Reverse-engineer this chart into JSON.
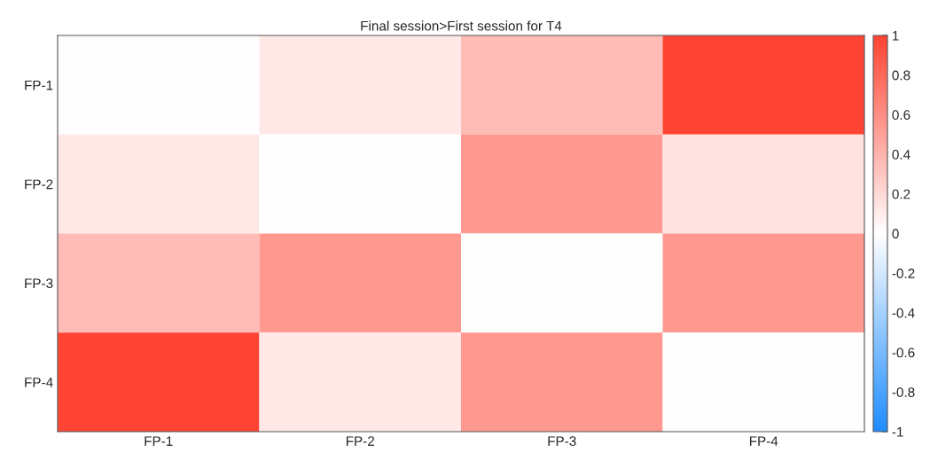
{
  "chart_data": {
    "type": "heatmap",
    "title": "Final session>First session for T4",
    "categories": [
      "FP-1",
      "FP-2",
      "FP-3",
      "FP-4"
    ],
    "y_categories": [
      "FP-1",
      "FP-2",
      "FP-3",
      "FP-4"
    ],
    "cells": [
      [
        0,
        0.12,
        0.36,
        1
      ],
      [
        0.12,
        0,
        0.54,
        0.15
      ],
      [
        0.36,
        0.54,
        0,
        0.54
      ],
      [
        1,
        0.12,
        0.54,
        0
      ]
    ],
    "clim": [
      -1,
      1
    ],
    "cticks": [
      -1,
      -0.8,
      -0.6,
      -0.4,
      -0.2,
      0,
      0.2,
      0.4,
      0.6,
      0.8,
      1
    ]
  }
}
